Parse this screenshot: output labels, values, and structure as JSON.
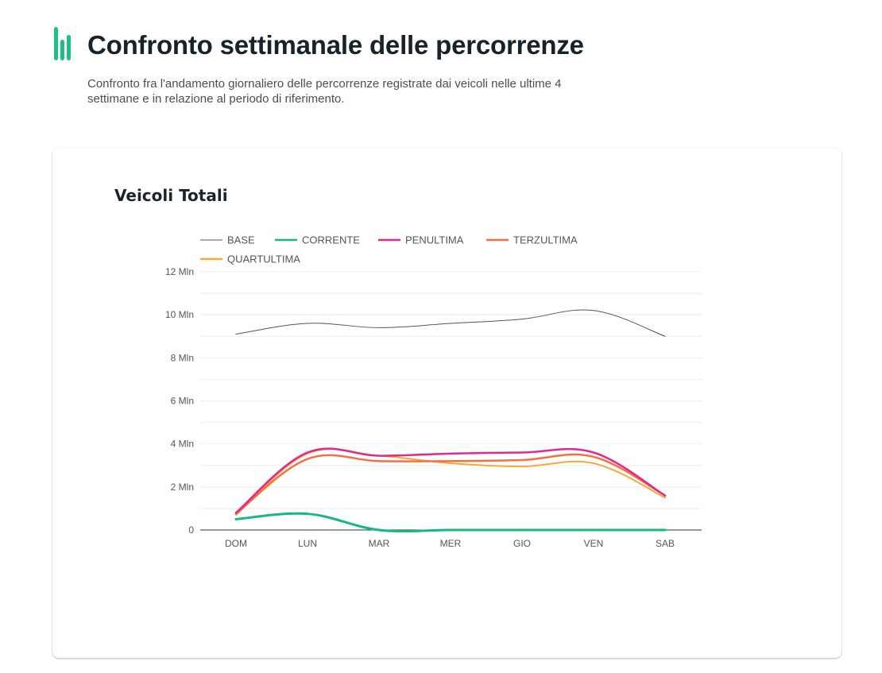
{
  "header": {
    "title": "Confronto settimanale delle percorrenze",
    "subtitle": "Confronto fra l'andamento giornaliero delle percorrenze registrate dai veicoli nelle ultime 4 settimane e in relazione al periodo di riferimento.",
    "icon": "bar-chart-icon",
    "accent_color": "#1dbf85"
  },
  "card": {
    "title": "Veicoli Totali"
  },
  "chart_data": {
    "type": "line",
    "title": "Veicoli Totali",
    "xlabel": "",
    "ylabel": "",
    "categories": [
      "DOM",
      "LUN",
      "MAR",
      "MER",
      "GIO",
      "VEN",
      "SAB"
    ],
    "ylim": [
      0,
      12
    ],
    "y_unit": "Mln",
    "y_ticks": [
      {
        "value": 0,
        "label": "0"
      },
      {
        "value": 2,
        "label": "2 Mln"
      },
      {
        "value": 4,
        "label": "4 Mln"
      },
      {
        "value": 6,
        "label": "6 Mln"
      },
      {
        "value": 8,
        "label": "8 Mln"
      },
      {
        "value": 10,
        "label": "10 Mln"
      },
      {
        "value": 12,
        "label": "12 Mln"
      }
    ],
    "grid": true,
    "legend_position": "top",
    "smooth": true,
    "series": [
      {
        "name": "BASE",
        "color": "#555555",
        "width": 1,
        "values": [
          9.1,
          9.6,
          9.4,
          9.6,
          9.8,
          10.2,
          9.0
        ]
      },
      {
        "name": "CORRENTE",
        "color": "#12b886",
        "width": 3,
        "values": [
          0.5,
          0.75,
          0.0,
          0.0,
          0.0,
          0.0,
          0.0
        ]
      },
      {
        "name": "PENULTIMA",
        "color": "#e0288f",
        "width": 2.5,
        "values": [
          0.8,
          3.6,
          3.45,
          3.55,
          3.6,
          3.6,
          1.6
        ]
      },
      {
        "name": "TERZULTIMA",
        "color": "#f27140",
        "width": 2.5,
        "values": [
          0.75,
          3.3,
          3.2,
          3.2,
          3.25,
          3.4,
          1.6
        ]
      },
      {
        "name": "QUARTULTIMA",
        "color": "#f8a73a",
        "width": 2,
        "values": [
          0.7,
          3.55,
          3.45,
          3.1,
          2.95,
          3.1,
          1.5
        ]
      }
    ]
  }
}
